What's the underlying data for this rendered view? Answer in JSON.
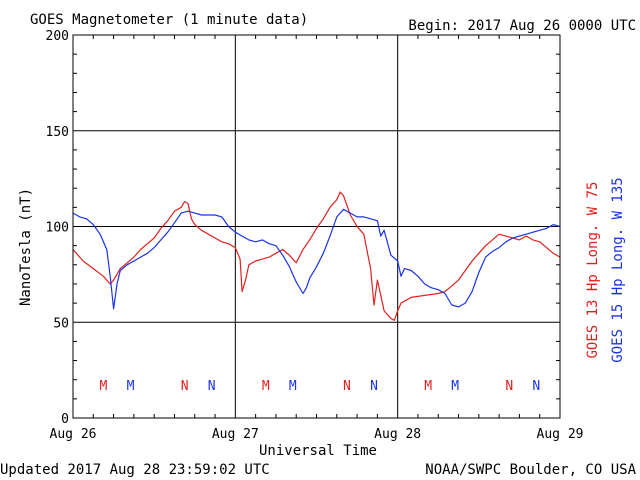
{
  "header": {
    "title": "GOES Magnetometer (1 minute data)",
    "begin": "Begin:  2017 Aug 26 0000 UTC"
  },
  "footer": {
    "updated": "Updated 2017 Aug 28 23:59:02 UTC",
    "credit": "NOAA/SWPC Boulder, CO USA"
  },
  "colors": {
    "goes13": "#e0201e",
    "goes15": "#1a33e6",
    "grid": "#000000"
  },
  "chart_data": {
    "type": "line",
    "title": "GOES Magnetometer (1 minute data)",
    "xlabel": "Universal Time",
    "ylabel": "NanoTesla (nT)",
    "ylim": [
      0,
      200
    ],
    "yticks": [
      0,
      50,
      100,
      150,
      200
    ],
    "xlim_hours": [
      0,
      72
    ],
    "xticks": [
      {
        "hour": 0,
        "label": "Aug 26"
      },
      {
        "hour": 24,
        "label": "Aug 27"
      },
      {
        "hour": 48,
        "label": "Aug 28"
      },
      {
        "hour": 72,
        "label": "Aug 29"
      }
    ],
    "grid": true,
    "markers": [
      {
        "hour": 4.5,
        "label": "M",
        "series": "GOES 13 Hp"
      },
      {
        "hour": 8.5,
        "label": "M",
        "series": "GOES 15 Hp"
      },
      {
        "hour": 16.5,
        "label": "N",
        "series": "GOES 13 Hp"
      },
      {
        "hour": 20.5,
        "label": "N",
        "series": "GOES 15 Hp"
      },
      {
        "hour": 28.5,
        "label": "M",
        "series": "GOES 13 Hp"
      },
      {
        "hour": 32.5,
        "label": "M",
        "series": "GOES 15 Hp"
      },
      {
        "hour": 40.5,
        "label": "N",
        "series": "GOES 13 Hp"
      },
      {
        "hour": 44.5,
        "label": "N",
        "series": "GOES 15 Hp"
      },
      {
        "hour": 52.5,
        "label": "M",
        "series": "GOES 13 Hp"
      },
      {
        "hour": 56.5,
        "label": "M",
        "series": "GOES 15 Hp"
      },
      {
        "hour": 64.5,
        "label": "N",
        "series": "GOES 13 Hp"
      },
      {
        "hour": 68.5,
        "label": "N",
        "series": "GOES 15 Hp"
      }
    ],
    "series": [
      {
        "name": "GOES 13 Hp",
        "legend": "GOES 13 Hp  Long. W 75",
        "x": [
          0,
          1.5,
          3,
          4.5,
          5.5,
          6,
          7,
          8,
          9,
          10,
          11,
          12,
          13,
          14,
          15,
          16,
          16.5,
          17,
          17.5,
          18,
          19,
          20,
          21,
          22,
          23,
          24,
          24.7,
          25,
          25.5,
          26,
          27,
          28,
          29,
          30,
          31,
          32,
          33,
          34,
          35,
          36,
          37,
          38,
          39,
          39.5,
          40,
          41,
          42,
          43,
          44,
          44.5,
          45,
          45.5,
          46,
          46.5,
          47,
          47.5,
          48,
          48.5,
          49,
          50,
          52,
          54,
          55,
          56,
          57,
          58,
          59,
          60,
          61,
          62,
          63,
          64,
          65,
          66,
          67,
          68,
          69,
          70,
          71,
          72
        ],
        "y": [
          88,
          82,
          78,
          74,
          70,
          72,
          78,
          81,
          84,
          88,
          91,
          94,
          99,
          103,
          108,
          110,
          113,
          112,
          104,
          101,
          98,
          96,
          94,
          92,
          91,
          89,
          83,
          66,
          72,
          80,
          82,
          83,
          84,
          86,
          88,
          85,
          81,
          88,
          93,
          99,
          104,
          110,
          114,
          118,
          116,
          106,
          100,
          96,
          78,
          59,
          72,
          64,
          56,
          54,
          52,
          51,
          56,
          60,
          61,
          63,
          64,
          65,
          66,
          69,
          72,
          77,
          82,
          86,
          90,
          93,
          96,
          95,
          94,
          93,
          95,
          93,
          92,
          89,
          86,
          84
        ]
      },
      {
        "name": "GOES 15 Hp",
        "legend": "GOES 15 Hp  Long. W 135",
        "x": [
          0,
          1,
          2,
          3,
          4,
          5,
          5.5,
          6,
          6.5,
          7,
          8,
          9,
          10,
          11,
          12,
          13,
          14,
          15,
          16,
          17,
          18,
          19,
          20,
          21,
          22,
          23,
          24,
          25,
          26,
          27,
          28,
          29,
          30,
          31,
          32,
          33,
          34,
          34.5,
          35,
          36,
          37,
          38,
          39,
          40,
          41,
          42,
          43,
          44,
          45,
          45.5,
          46,
          47,
          48,
          48.5,
          49,
          50,
          51,
          52,
          53,
          54,
          55,
          56,
          57,
          58,
          59,
          60,
          61,
          62,
          63,
          64,
          65,
          66,
          67,
          68,
          69,
          70,
          71,
          72
        ],
        "y": [
          107,
          105,
          104,
          101,
          96,
          88,
          74,
          57,
          70,
          77,
          80,
          82,
          84,
          86,
          89,
          93,
          97,
          102,
          107,
          108,
          107,
          106,
          106,
          106,
          105,
          100,
          97,
          95,
          93,
          92,
          93,
          91,
          90,
          85,
          79,
          71,
          65,
          68,
          73,
          79,
          86,
          95,
          105,
          109,
          107,
          105,
          105,
          104,
          103,
          95,
          98,
          85,
          82,
          74,
          78,
          77,
          74,
          70,
          68,
          67,
          65,
          59,
          58,
          60,
          66,
          76,
          84,
          87,
          89,
          92,
          94,
          95,
          96,
          97,
          98,
          99,
          101,
          100
        ]
      }
    ]
  }
}
